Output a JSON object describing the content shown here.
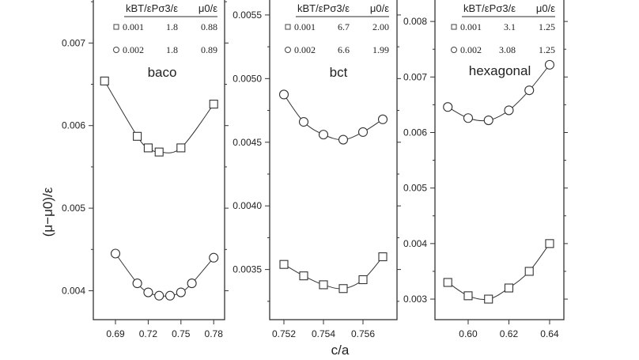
{
  "chart_data": [
    {
      "type": "line",
      "title": "baco",
      "xlim": [
        0.6697,
        0.79
      ],
      "ylim": [
        0.00365,
        0.00754
      ],
      "xticks": [
        "0.69",
        "0.72",
        "0.75",
        "0.78"
      ],
      "yticks": [
        "0.004",
        "0.005",
        "0.006",
        "0.007"
      ],
      "legend": {
        "headers": [
          "kBT/ε",
          "Pσ3/ε",
          "μ0/ε"
        ],
        "rows": [
          [
            "0.001",
            "1.8",
            "0.88"
          ],
          [
            "0.002",
            "1.8",
            "0.89"
          ]
        ]
      },
      "series": [
        {
          "marker": "square",
          "x": [
            0.68,
            0.71,
            0.72,
            0.73,
            0.75,
            0.78
          ],
          "y": [
            0.00654,
            0.00587,
            0.00573,
            0.00568,
            0.00573,
            0.00626
          ]
        },
        {
          "marker": "circle",
          "x": [
            0.69,
            0.71,
            0.72,
            0.73,
            0.74,
            0.75,
            0.76,
            0.78
          ],
          "y": [
            0.00445,
            0.00409,
            0.00398,
            0.00394,
            0.00394,
            0.00398,
            0.00409,
            0.0044
          ]
        }
      ]
    },
    {
      "type": "line",
      "title": "bct",
      "xlim": [
        0.75128,
        0.75772
      ],
      "ylim": [
        0.003106,
        0.00563
      ],
      "xticks": [
        "0.752",
        "0.754",
        "0.756"
      ],
      "yticks": [
        "0.0035",
        "0.0040",
        "0.0045",
        "0.0050",
        "0.0055"
      ],
      "legend": {
        "headers": [
          "kBT/ε",
          "Pσ3/ε",
          "μ0/ε"
        ],
        "rows": [
          [
            "0.001",
            "6.7",
            "2.00"
          ],
          [
            "0.002",
            "6.6",
            "1.99"
          ]
        ]
      },
      "series": [
        {
          "marker": "square",
          "x": [
            0.752,
            0.753,
            0.754,
            0.755,
            0.756,
            0.757
          ],
          "y": [
            0.00354,
            0.00345,
            0.00338,
            0.00335,
            0.00342,
            0.0036
          ]
        },
        {
          "marker": "circle",
          "x": [
            0.752,
            0.753,
            0.754,
            0.755,
            0.756,
            0.757
          ],
          "y": [
            0.004875,
            0.00466,
            0.00456,
            0.00452,
            0.00458,
            0.00468
          ]
        }
      ]
    },
    {
      "type": "line",
      "title": "hexagonal",
      "xlim": [
        0.5837,
        0.647
      ],
      "ylim": [
        0.00263,
        0.008415
      ],
      "xticks": [
        "0.60",
        "0.62",
        "0.64"
      ],
      "yticks": [
        "0.003",
        "0.004",
        "0.005",
        "0.006",
        "0.007",
        "0.008"
      ],
      "legend": {
        "headers": [
          "kBT/ε",
          "Pσ3/ε",
          "μ0/ε"
        ],
        "rows": [
          [
            "0.001",
            "3.1",
            "1.25"
          ],
          [
            "0.002",
            "3.08",
            "1.25"
          ]
        ]
      },
      "series": [
        {
          "marker": "square",
          "x": [
            0.59,
            0.6,
            0.61,
            0.62,
            0.63,
            0.64
          ],
          "y": [
            0.0033,
            0.00306,
            0.003,
            0.0032,
            0.0035,
            0.004
          ]
        },
        {
          "marker": "circle",
          "x": [
            0.59,
            0.6,
            0.61,
            0.62,
            0.63,
            0.64
          ],
          "y": [
            0.00646,
            0.00626,
            0.00622,
            0.0064,
            0.00676,
            0.00722
          ]
        }
      ]
    }
  ],
  "ylabel": "(μ−μ0)/ε",
  "xlabel": "c/a"
}
